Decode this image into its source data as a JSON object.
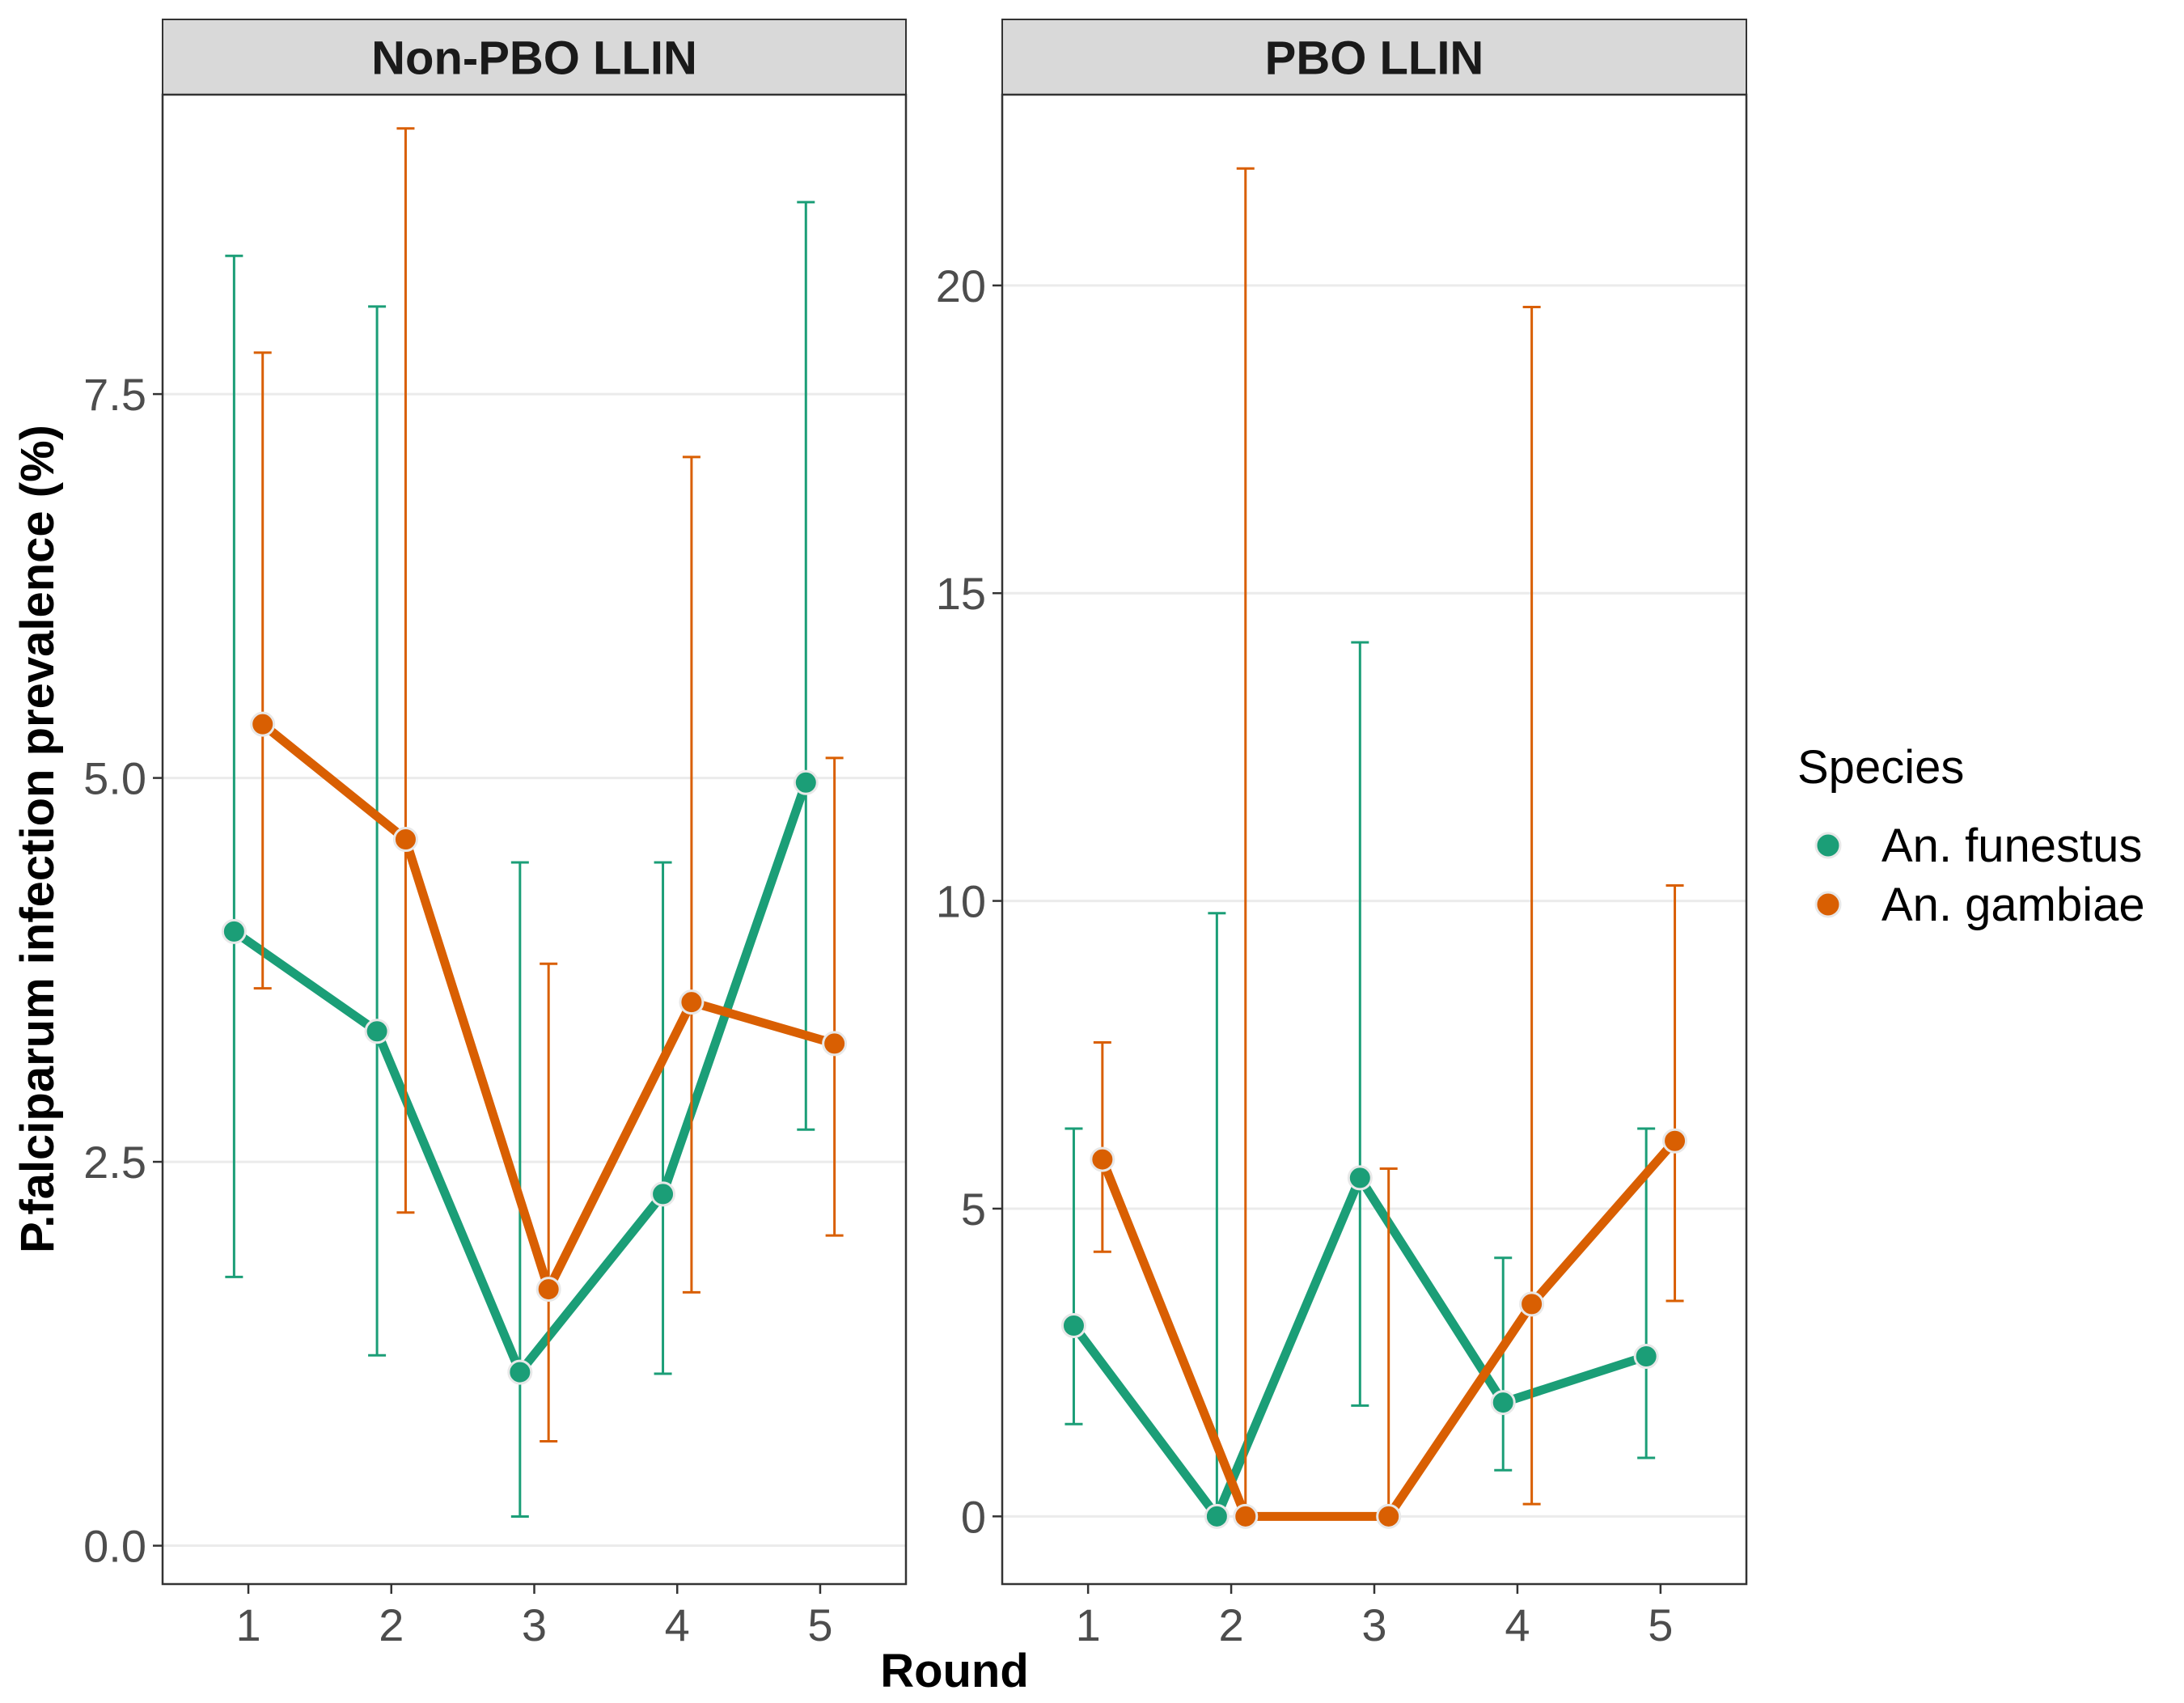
{
  "chart_data": {
    "type": "line",
    "xlabel": "Round",
    "ylabel": "P.falciparum infection prevalence (%)",
    "legend": {
      "title": "Species",
      "position": "right",
      "entries": [
        "An. funestus",
        "An. gambiae"
      ]
    },
    "colors": {
      "An. funestus": "#1B9E77",
      "An. gambiae": "#D95F02"
    },
    "grid": "horizontal major",
    "x_categories": [
      "1",
      "2",
      "3",
      "4",
      "5"
    ],
    "facets": [
      {
        "title": "Non-PBO LLIN",
        "ylim": [
          -0.25,
          9.45
        ],
        "yticks": [
          0.0,
          2.5,
          5.0,
          7.5
        ],
        "ytick_labels": [
          "0.0",
          "2.5",
          "5.0",
          "7.5"
        ],
        "series": [
          {
            "name": "An. funestus",
            "x": [
              1,
              2,
              3,
              4,
              5
            ],
            "values": [
              4.0,
              3.35,
              1.13,
              2.29,
              4.97
            ],
            "lower": [
              1.75,
              1.24,
              0.19,
              1.12,
              2.71
            ],
            "upper": [
              8.4,
              8.07,
              4.45,
              4.45,
              8.75
            ]
          },
          {
            "name": "An. gambiae",
            "x": [
              1,
              2,
              3,
              4,
              5
            ],
            "values": [
              5.35,
              4.6,
              1.67,
              3.54,
              3.27
            ],
            "lower": [
              3.63,
              2.17,
              0.68,
              1.65,
              2.02
            ],
            "upper": [
              7.77,
              9.23,
              3.79,
              7.09,
              5.13
            ]
          }
        ]
      },
      {
        "title": "PBO LLIN",
        "ylim": [
          -1.1,
          23.1
        ],
        "yticks": [
          0,
          5,
          10,
          15,
          20
        ],
        "ytick_labels": [
          "0",
          "5",
          "10",
          "15",
          "20"
        ],
        "series": [
          {
            "name": "An. funestus",
            "x": [
              1,
              2,
              3,
              4,
              5
            ],
            "values": [
              3.1,
              0.0,
              5.5,
              1.85,
              2.6
            ],
            "lower": [
              1.5,
              0.0,
              1.8,
              0.75,
              0.95
            ],
            "upper": [
              6.3,
              9.8,
              14.2,
              4.2,
              6.3
            ]
          },
          {
            "name": "An. gambiae",
            "x": [
              1,
              2,
              3,
              4,
              5
            ],
            "values": [
              5.8,
              0.0,
              0.0,
              3.45,
              6.1
            ],
            "lower": [
              4.3,
              0.0,
              0.0,
              0.2,
              3.5
            ],
            "upper": [
              7.7,
              21.9,
              5.65,
              19.65,
              10.25
            ]
          }
        ]
      }
    ]
  }
}
